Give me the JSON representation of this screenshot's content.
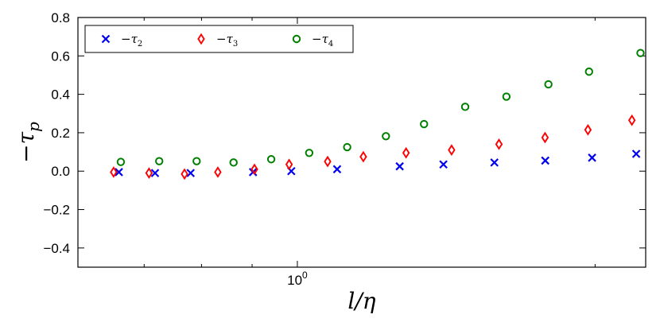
{
  "chart_data": {
    "type": "scatter",
    "xlabel": "l/η",
    "ylabel": "−τp",
    "xscale": "log",
    "xlim": [
      0.6,
      2.25
    ],
    "ylim": [
      -0.5,
      0.8
    ],
    "x_ticks": [
      {
        "base": "10",
        "exp": "0",
        "value": 1.0
      }
    ],
    "y_ticks": [
      "−0.4",
      "−0.2",
      "0.0",
      "0.2",
      "0.4",
      "0.6",
      "0.8"
    ],
    "y_tick_values": [
      -0.4,
      -0.2,
      0.0,
      0.2,
      0.4,
      0.6,
      0.8
    ],
    "grid": false,
    "legend_position": "top-left",
    "series": [
      {
        "name": "−τ2",
        "marker": "x",
        "color": "#0000ee",
        "points": [
          [
            0.66,
            -0.005
          ],
          [
            0.718,
            -0.01
          ],
          [
            0.78,
            -0.01
          ],
          [
            0.902,
            -0.005
          ],
          [
            0.986,
            0.0
          ],
          [
            1.097,
            0.01
          ],
          [
            1.269,
            0.025
          ],
          [
            1.405,
            0.035
          ],
          [
            1.582,
            0.045
          ],
          [
            1.781,
            0.055
          ],
          [
            1.986,
            0.07
          ],
          [
            2.201,
            0.09
          ]
        ]
      },
      {
        "name": "−τ3",
        "marker": "diamond",
        "color": "#ff0000",
        "points": [
          [
            0.652,
            -0.005
          ],
          [
            0.708,
            -0.01
          ],
          [
            0.769,
            -0.015
          ],
          [
            0.831,
            -0.005
          ],
          [
            0.905,
            0.01
          ],
          [
            0.981,
            0.035
          ],
          [
            1.073,
            0.05
          ],
          [
            1.166,
            0.075
          ],
          [
            1.288,
            0.095
          ],
          [
            1.432,
            0.11
          ],
          [
            1.599,
            0.14
          ],
          [
            1.78,
            0.175
          ],
          [
            1.967,
            0.215
          ],
          [
            2.179,
            0.265
          ]
        ]
      },
      {
        "name": "−τ4",
        "marker": "circle",
        "color": "#008000",
        "points": [
          [
            0.663,
            0.048
          ],
          [
            0.725,
            0.052
          ],
          [
            0.791,
            0.052
          ],
          [
            0.862,
            0.045
          ],
          [
            0.941,
            0.062
          ],
          [
            1.028,
            0.095
          ],
          [
            1.123,
            0.125
          ],
          [
            1.229,
            0.182
          ],
          [
            1.343,
            0.245
          ],
          [
            1.478,
            0.335
          ],
          [
            1.627,
            0.388
          ],
          [
            1.794,
            0.452
          ],
          [
            1.972,
            0.518
          ],
          [
            2.223,
            0.615
          ]
        ]
      }
    ]
  }
}
